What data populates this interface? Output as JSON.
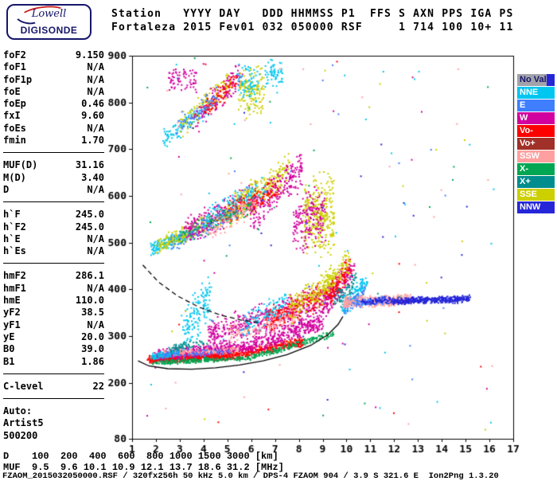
{
  "logo": {
    "line1": "Lowell",
    "line2": "DIGISONDE"
  },
  "header": {
    "line1": "Station   YYYY DAY   DDD HHMMSS P1  FFS S AXN PPS IGA PS",
    "line2": "Fortaleza 2015 Fev01 032 050000 RSF     1 714 100 10+ 11"
  },
  "params": {
    "groups": [
      {
        "rows": [
          [
            "foF2",
            "9.150"
          ],
          [
            "foF1",
            "N/A"
          ],
          [
            "foF1p",
            "N/A"
          ],
          [
            "foE",
            "N/A"
          ],
          [
            "foEp",
            "0.46"
          ],
          [
            "fxI",
            "9.60"
          ],
          [
            "foEs",
            "N/A"
          ],
          [
            "fmin",
            "1.70"
          ]
        ]
      },
      {
        "rows": [
          [
            "MUF(D)",
            "31.16"
          ],
          [
            "M(D)",
            "3.40"
          ],
          [
            "D",
            "N/A"
          ]
        ]
      },
      {
        "rows": [
          [
            "h`F",
            "245.0"
          ],
          [
            "h`F2",
            "245.0"
          ],
          [
            "h`E",
            "N/A"
          ],
          [
            "h`Es",
            "N/A"
          ]
        ]
      },
      {
        "rows": [
          [
            "hmF2",
            "286.1"
          ],
          [
            "hmF1",
            "N/A"
          ],
          [
            "hmE",
            "110.0"
          ],
          [
            "yF2",
            "38.5"
          ],
          [
            "yF1",
            "N/A"
          ],
          [
            "yE",
            "20.0"
          ],
          [
            "B0",
            "39.0"
          ],
          [
            "B1",
            "1.86"
          ]
        ]
      },
      {
        "rows": [
          [
            "C-level",
            "22"
          ]
        ]
      },
      {
        "rows": [
          [
            "Auto:",
            ""
          ],
          [
            "Artist5",
            ""
          ],
          [
            "500200",
            ""
          ]
        ]
      }
    ]
  },
  "bottom": {
    "d_line": "D    100  200  400  600  800 1000 1500 3000 [km]",
    "muf_line": "MUF  9.5  9.6 10.1 10.9 12.1 13.7 18.6 31.2 [MHz]",
    "footer": "FZAOM_2015032050000.RSF / 320fx256h 50 kHz 5.0 km / DPS-4 FZAOM 904 / 3.9 S 321.6 E  Ion2Png 1.3.20"
  },
  "chart_data": {
    "type": "scatter",
    "title": "",
    "xlabel": "[MHz]",
    "ylabel": "[km]",
    "xlim": [
      1,
      17
    ],
    "ylim": [
      80,
      900
    ],
    "x_ticks": [
      1,
      2,
      3,
      4,
      5,
      6,
      7,
      8,
      9,
      10,
      11,
      12,
      13,
      14,
      15,
      16,
      17
    ],
    "y_ticks": [
      900,
      800,
      700,
      600,
      500,
      400,
      300,
      200,
      80
    ],
    "grid": false,
    "legend_position": "right",
    "plot": {
      "l": 166,
      "t": 70,
      "r": 645,
      "b": 551
    },
    "colors": {
      "noval": "#a2a2aa",
      "nne": "#00c6f0",
      "e": "#3f7fff",
      "w": "#d2009e",
      "vom": "#ff0000",
      "vop": "#a03028",
      "ssw": "#ffa0a0",
      "xm": "#00a651",
      "xp": "#008d8d",
      "sse": "#cccf00",
      "nnw": "#2626d9"
    },
    "legend": [
      {
        "label": "No Val",
        "color": "noval",
        "text": "#16166b",
        "split_color": "nnw"
      },
      {
        "label": "NNE",
        "color": "nne",
        "text": "#ffffff"
      },
      {
        "label": "E",
        "color": "e",
        "text": "#ffffff"
      },
      {
        "label": "W",
        "color": "w",
        "text": "#ffffff"
      },
      {
        "label": "Vo-",
        "color": "vom",
        "text": "#ffffff"
      },
      {
        "label": "Vo+",
        "color": "vop",
        "text": "#ffffff"
      },
      {
        "label": "SSW",
        "color": "ssw",
        "text": "#ffffff"
      },
      {
        "label": "X-",
        "color": "xm",
        "text": "#ffffff"
      },
      {
        "label": "X+",
        "color": "xp",
        "text": "#ffffff"
      },
      {
        "label": "SSE",
        "color": "sse",
        "text": "#ffffff"
      },
      {
        "label": "NNW",
        "color": "nnw",
        "text": "#ffffff"
      }
    ],
    "clusters": [
      {
        "c": "vom",
        "x": [
          1.7,
          5.0
        ],
        "h": [
          250,
          257
        ],
        "s": 10,
        "n": 550
      },
      {
        "c": "vom",
        "x": [
          5.0,
          8.2
        ],
        "h": [
          257,
          288
        ],
        "s": 12,
        "n": 330
      },
      {
        "c": "w",
        "x": [
          2.0,
          6.0
        ],
        "h": [
          258,
          278
        ],
        "s": 14,
        "n": 400
      },
      {
        "c": "w",
        "x": [
          6.0,
          9.0
        ],
        "h": [
          278,
          330
        ],
        "s": 22,
        "n": 300
      },
      {
        "c": "xm",
        "x": [
          1.8,
          6.0
        ],
        "h": [
          243,
          252
        ],
        "s": 6,
        "n": 200
      },
      {
        "c": "xm",
        "x": [
          6.0,
          9.5
        ],
        "h": [
          255,
          305
        ],
        "s": 8,
        "n": 160
      },
      {
        "c": "ssw",
        "x": [
          2.2,
          5.5
        ],
        "h": [
          262,
          272
        ],
        "s": 9,
        "n": 140
      },
      {
        "c": "nne",
        "x": [
          1.8,
          3.0
        ],
        "h": [
          256,
          264
        ],
        "s": 8,
        "n": 100
      },
      {
        "c": "e",
        "x": [
          2.2,
          5.2
        ],
        "h": [
          258,
          268
        ],
        "s": 8,
        "n": 70
      },
      {
        "c": "nne",
        "x": [
          3.1,
          4.3
        ],
        "h": [
          300,
          390
        ],
        "s": 55,
        "n": 140
      },
      {
        "c": "xp",
        "x": [
          2.6,
          4.0
        ],
        "h": [
          270,
          290
        ],
        "s": 12,
        "n": 60
      },
      {
        "c": "w",
        "x": [
          4.2,
          9.2
        ],
        "h": [
          300,
          372
        ],
        "s": 40,
        "n": 500
      },
      {
        "c": "vom",
        "x": [
          6.6,
          9.3
        ],
        "h": [
          330,
          395
        ],
        "s": 35,
        "n": 220
      },
      {
        "c": "ssw",
        "x": [
          5.0,
          8.0
        ],
        "h": [
          305,
          345
        ],
        "s": 25,
        "n": 130
      },
      {
        "c": "sse",
        "x": [
          7.6,
          9.6
        ],
        "h": [
          355,
          425
        ],
        "s": 40,
        "n": 180
      },
      {
        "c": "nne",
        "x": [
          5.6,
          7.6
        ],
        "h": [
          325,
          375
        ],
        "s": 30,
        "n": 100
      },
      {
        "c": "w",
        "x": [
          9.0,
          10.3
        ],
        "h": [
          365,
          445
        ],
        "s": 35,
        "n": 160
      },
      {
        "c": "vom",
        "x": [
          9.3,
          10.2
        ],
        "h": [
          385,
          455
        ],
        "s": 30,
        "n": 100
      },
      {
        "c": "sse",
        "x": [
          9.0,
          10.1
        ],
        "h": [
          400,
          462
        ],
        "s": 28,
        "n": 90
      },
      {
        "c": "nne",
        "x": [
          9.8,
          10.9
        ],
        "h": [
          362,
          415
        ],
        "s": 26,
        "n": 110
      },
      {
        "c": "e",
        "x": [
          9.9,
          10.8
        ],
        "h": [
          358,
          398
        ],
        "s": 20,
        "n": 70
      },
      {
        "c": "xp",
        "x": [
          9.5,
          10.4
        ],
        "h": [
          370,
          420
        ],
        "s": 25,
        "n": 60
      },
      {
        "c": "ssw",
        "x": [
          9.9,
          12.7
        ],
        "h": [
          372,
          378
        ],
        "s": 14,
        "n": 360
      },
      {
        "c": "nnw",
        "x": [
          11.9,
          15.2
        ],
        "h": [
          374,
          380
        ],
        "s": 9,
        "n": 400
      },
      {
        "c": "e",
        "x": [
          10.2,
          11.7
        ],
        "h": [
          368,
          377
        ],
        "s": 10,
        "n": 90
      },
      {
        "c": "nnw",
        "x": [
          10.6,
          11.9
        ],
        "h": [
          372,
          378
        ],
        "s": 8,
        "n": 70
      },
      {
        "c": "nne",
        "x": [
          1.8,
          3.6
        ],
        "h": [
          487,
          520
        ],
        "s": 16,
        "n": 180
      },
      {
        "c": "sse",
        "x": [
          2.0,
          5.2
        ],
        "h": [
          492,
          565
        ],
        "s": 22,
        "n": 230
      },
      {
        "c": "w",
        "x": [
          3.2,
          6.2
        ],
        "h": [
          520,
          600
        ],
        "s": 35,
        "n": 270
      },
      {
        "c": "sse",
        "x": [
          5.0,
          7.6
        ],
        "h": [
          560,
          655
        ],
        "s": 40,
        "n": 270
      },
      {
        "c": "w",
        "x": [
          6.0,
          8.2
        ],
        "h": [
          560,
          662
        ],
        "s": 45,
        "n": 220
      },
      {
        "c": "nne",
        "x": [
          4.0,
          6.6
        ],
        "h": [
          540,
          622
        ],
        "s": 35,
        "n": 130
      },
      {
        "c": "vom",
        "x": [
          4.6,
          7.2
        ],
        "h": [
          545,
          620
        ],
        "s": 30,
        "n": 110
      },
      {
        "c": "e",
        "x": [
          2.6,
          5.6
        ],
        "h": [
          500,
          572
        ],
        "s": 26,
        "n": 90
      },
      {
        "c": "ssw",
        "x": [
          4.2,
          6.2
        ],
        "h": [
          525,
          585
        ],
        "s": 26,
        "n": 90
      },
      {
        "c": "sse",
        "x": [
          8.2,
          9.5
        ],
        "h": [
          560,
          560
        ],
        "s": 100,
        "n": 320
      },
      {
        "c": "w",
        "x": [
          7.8,
          9.1
        ],
        "h": [
          540,
          560
        ],
        "s": 70,
        "n": 180
      },
      {
        "c": "xm",
        "x": [
          3.0,
          6.0
        ],
        "h": [
          510,
          580
        ],
        "s": 25,
        "n": 80
      },
      {
        "c": "nne",
        "x": [
          2.3,
          4.2
        ],
        "h": [
          720,
          790
        ],
        "s": 25,
        "n": 110
      },
      {
        "c": "sse",
        "x": [
          3.0,
          5.2
        ],
        "h": [
          748,
          845
        ],
        "s": 30,
        "n": 140
      },
      {
        "c": "w",
        "x": [
          3.6,
          5.6
        ],
        "h": [
          760,
          862
        ],
        "s": 35,
        "n": 120
      },
      {
        "c": "vom",
        "x": [
          4.0,
          5.4
        ],
        "h": [
          780,
          852
        ],
        "s": 26,
        "n": 70
      },
      {
        "c": "e",
        "x": [
          2.8,
          4.6
        ],
        "h": [
          738,
          812
        ],
        "s": 26,
        "n": 60
      },
      {
        "c": "sse",
        "x": [
          5.5,
          6.5
        ],
        "h": [
          820,
          820
        ],
        "s": 60,
        "n": 140
      },
      {
        "c": "nne",
        "x": [
          5.4,
          6.3
        ],
        "h": [
          840,
          840
        ],
        "s": 45,
        "n": 70
      },
      {
        "c": "w",
        "x": [
          2.5,
          3.7
        ],
        "h": [
          848,
          848
        ],
        "s": 28,
        "n": 70
      },
      {
        "c": "nne",
        "x": [
          6.6,
          7.3
        ],
        "h": [
          860,
          860
        ],
        "s": 35,
        "n": 60
      }
    ],
    "noise": {
      "n": 160,
      "x": [
        1.6,
        16.2
      ],
      "h": [
        95,
        895
      ]
    },
    "curves": [
      {
        "name": "true-height-profile",
        "style": "solid",
        "points": [
          [
            1.25,
            247
          ],
          [
            1.7,
            236
          ],
          [
            2.5,
            230
          ],
          [
            3.5,
            229
          ],
          [
            4.5,
            232
          ],
          [
            5.5,
            238
          ],
          [
            6.5,
            247
          ],
          [
            7.5,
            260
          ],
          [
            8.5,
            280
          ],
          [
            9.2,
            302
          ],
          [
            9.65,
            325
          ],
          [
            9.85,
            342
          ]
        ]
      },
      {
        "name": "dashed-boundary",
        "style": "dashed",
        "points": [
          [
            1.45,
            452
          ],
          [
            2.1,
            416
          ],
          [
            2.9,
            386
          ],
          [
            3.8,
            362
          ],
          [
            4.7,
            345
          ],
          [
            5.6,
            334
          ],
          [
            6.3,
            329
          ]
        ]
      }
    ]
  }
}
